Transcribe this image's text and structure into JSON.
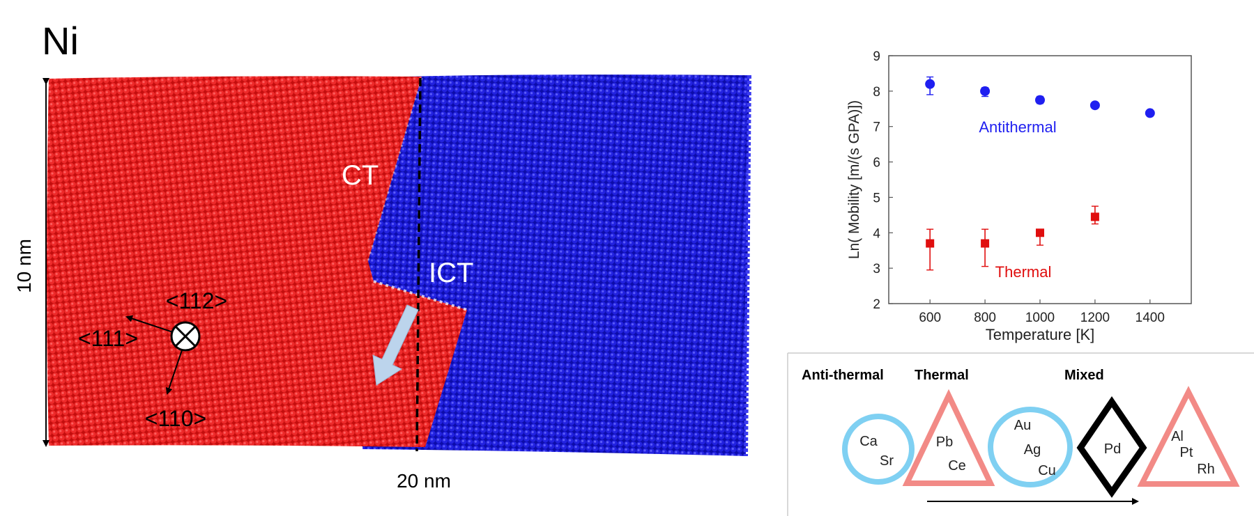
{
  "figure": {
    "title": "Ni",
    "dim_vertical": "10 nm",
    "dim_horizontal": "20 nm",
    "label_ct": "CT",
    "label_ict": "ICT",
    "orient_112": "<112>",
    "orient_111": "<111>",
    "orient_110": "<110>",
    "colors": {
      "grain_red": "#e01313",
      "grain_blue": "#1717d6",
      "arrow_fill": "#bcd4ec"
    }
  },
  "chart_data": {
    "type": "scatter",
    "xlabel": "Temperature [K]",
    "ylabel": "Ln( Mobility [m/(s GPA)])",
    "xlim": [
      450,
      1550
    ],
    "ylim": [
      2,
      9
    ],
    "xticks": [
      600,
      800,
      1000,
      1200,
      1400
    ],
    "yticks": [
      2,
      3,
      4,
      5,
      6,
      7,
      8,
      9
    ],
    "series": [
      {
        "name": "Antithermal",
        "marker": "circle",
        "color": "#1f1ff0",
        "points": [
          {
            "x": 600,
            "y": 8.2,
            "lo": 7.9,
            "hi": 8.4
          },
          {
            "x": 800,
            "y": 8.0,
            "lo": 7.85,
            "hi": 8.1
          },
          {
            "x": 1000,
            "y": 7.75,
            "lo": 7.65,
            "hi": 7.85
          },
          {
            "x": 1200,
            "y": 7.6,
            "lo": 7.55,
            "hi": 7.65
          },
          {
            "x": 1400,
            "y": 7.38,
            "lo": 7.33,
            "hi": 7.43
          }
        ]
      },
      {
        "name": "Thermal",
        "marker": "square",
        "color": "#e00e0e",
        "points": [
          {
            "x": 600,
            "y": 3.7,
            "lo": 2.95,
            "hi": 4.1
          },
          {
            "x": 800,
            "y": 3.7,
            "lo": 3.05,
            "hi": 4.1
          },
          {
            "x": 1000,
            "y": 4.0,
            "lo": 3.65,
            "hi": 4.05
          },
          {
            "x": 1200,
            "y": 4.45,
            "lo": 4.25,
            "hi": 4.75
          }
        ]
      }
    ]
  },
  "legend_panel": {
    "heading_antithermal": "Anti-thermal",
    "heading_thermal": "Thermal",
    "heading_mixed": "Mixed",
    "circle1": [
      "Ca",
      "Sr"
    ],
    "triangle1": [
      "Pb",
      "Ce"
    ],
    "circle2": [
      "Au",
      "Ag",
      "Cu"
    ],
    "diamond": [
      "Pd"
    ],
    "triangle2": [
      "Al",
      "Pt",
      "Rh"
    ],
    "colors": {
      "circle": "#7fd0f2",
      "triangle": "#f28a86",
      "diamond": "#000000"
    }
  }
}
